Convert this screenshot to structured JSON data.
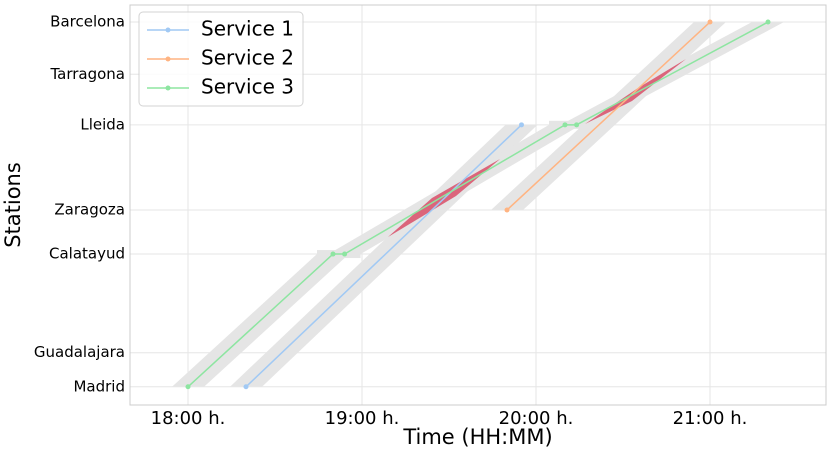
{
  "chart_data": {
    "type": "line",
    "x_label": "Time (HH:MM)",
    "y_label": "Stations",
    "xlim": [
      1060,
      1300
    ],
    "ylim": [
      -31,
      650
    ],
    "xticks": [
      {
        "value": 1080,
        "label": "18:00 h."
      },
      {
        "value": 1140,
        "label": "19:00 h."
      },
      {
        "value": 1200,
        "label": "20:00 h."
      },
      {
        "value": 1260,
        "label": "21:00 h."
      }
    ],
    "yticks": [
      {
        "value": 0,
        "label": "Madrid"
      },
      {
        "value": 58,
        "label": "Guadalajara"
      },
      {
        "value": 226,
        "label": "Calatayud"
      },
      {
        "value": 301,
        "label": "Zaragoza"
      },
      {
        "value": 446,
        "label": "Lleida"
      },
      {
        "value": 532,
        "label": "Tarragona"
      },
      {
        "value": 621,
        "label": "Barcelona"
      }
    ],
    "grid": true,
    "legend": "upper left",
    "series": [
      {
        "name": "Service 1",
        "color": "#a1c9f4",
        "x": [
          1100,
          1195
        ],
        "y": [
          0,
          446
        ]
      },
      {
        "name": "Service 2",
        "color": "#ffb482",
        "x": [
          1190,
          1260
        ],
        "y": [
          301,
          621
        ]
      },
      {
        "name": "Service 3",
        "color": "#8de5a1",
        "x": [
          1080,
          1130,
          1134,
          1210,
          1214,
          1280
        ],
        "y": [
          0,
          226,
          226,
          446,
          446,
          621
        ]
      }
    ]
  }
}
